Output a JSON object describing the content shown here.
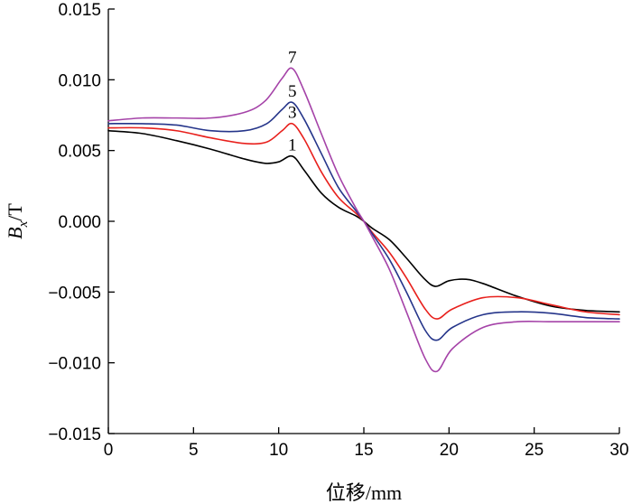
{
  "chart_data": {
    "type": "line",
    "xlabel": "位移/mm",
    "ylabel": "Bx/T",
    "ylabel_parts": {
      "main": "B",
      "sub": "x",
      "unit": "/T"
    },
    "xlim": [
      0,
      30
    ],
    "ylim": [
      -0.015,
      0.015
    ],
    "x_ticks": [
      0,
      5,
      10,
      15,
      20,
      25,
      30
    ],
    "x_tick_labels": [
      "0",
      "5",
      "10",
      "15",
      "20",
      "25",
      "30"
    ],
    "y_ticks": [
      0.015,
      0.01,
      0.005,
      0.0,
      -0.005,
      -0.01,
      -0.015
    ],
    "y_tick_labels": [
      "0.015",
      "0.010",
      "0.005",
      "0.000",
      "−0.005",
      "−0.010",
      "−0.015"
    ],
    "grid": false,
    "series": [
      {
        "name": "1",
        "color": "#000000",
        "label_at": [
          10.8,
          0.005
        ],
        "x": [
          0,
          2,
          4,
          6,
          8,
          9.2,
          10,
          10.8,
          11.5,
          12.5,
          13.5,
          14.5,
          15,
          15.5,
          16.5,
          17.5,
          18.5,
          19.2,
          20,
          21,
          22,
          24,
          26,
          28,
          30
        ],
        "y": [
          0.0064,
          0.0062,
          0.0057,
          0.0051,
          0.0044,
          0.0041,
          0.0042,
          0.0046,
          0.0036,
          0.002,
          0.001,
          0.0004,
          0.0,
          -0.0005,
          -0.0013,
          -0.0026,
          -0.004,
          -0.0046,
          -0.0042,
          -0.0041,
          -0.0044,
          -0.0053,
          -0.006,
          -0.0063,
          -0.0064
        ]
      },
      {
        "name": "3",
        "color": "#e8201c",
        "label_at": [
          10.8,
          0.0073
        ],
        "x": [
          0,
          2,
          4,
          6,
          8,
          9.3,
          10.2,
          10.8,
          11.5,
          12.5,
          13.5,
          14.5,
          15,
          15.5,
          16.5,
          17.5,
          18.6,
          19.3,
          20.2,
          22,
          24,
          26,
          28,
          30
        ],
        "y": [
          0.0066,
          0.0066,
          0.0064,
          0.0059,
          0.0055,
          0.0056,
          0.0064,
          0.0069,
          0.0058,
          0.0035,
          0.0017,
          0.0006,
          0.0,
          -0.0008,
          -0.0022,
          -0.004,
          -0.0062,
          -0.0069,
          -0.0062,
          -0.0054,
          -0.0054,
          -0.0059,
          -0.0064,
          -0.0066
        ]
      },
      {
        "name": "5",
        "color": "#25358a",
        "label_at": [
          10.8,
          0.0088
        ],
        "x": [
          0,
          2,
          4,
          6,
          8,
          9.3,
          10.2,
          10.8,
          11.5,
          12.5,
          13.5,
          14.5,
          15,
          15.5,
          16.5,
          17.5,
          18.6,
          19.3,
          20.2,
          22,
          24,
          26,
          28,
          30
        ],
        "y": [
          0.0069,
          0.0069,
          0.0068,
          0.0064,
          0.0064,
          0.0069,
          0.0079,
          0.0084,
          0.0072,
          0.0048,
          0.0024,
          0.0008,
          0.0,
          -0.0009,
          -0.0027,
          -0.005,
          -0.0077,
          -0.0084,
          -0.0075,
          -0.0066,
          -0.0064,
          -0.0065,
          -0.0068,
          -0.0069
        ]
      },
      {
        "name": "7",
        "color": "#a543a8",
        "label_at": [
          10.8,
          0.0112
        ],
        "x": [
          0,
          2,
          4,
          6,
          8,
          9.2,
          10.2,
          10.8,
          11.5,
          12.5,
          13.5,
          14.5,
          15,
          15.5,
          16.5,
          17.5,
          18.6,
          19.3,
          20.2,
          22,
          24,
          26,
          28,
          30
        ],
        "y": [
          0.0071,
          0.0073,
          0.0073,
          0.0073,
          0.0077,
          0.0085,
          0.0101,
          0.0108,
          0.0092,
          0.0062,
          0.0033,
          0.001,
          0.0,
          -0.0011,
          -0.0034,
          -0.0064,
          -0.0097,
          -0.0106,
          -0.009,
          -0.0075,
          -0.0071,
          -0.0071,
          -0.0071,
          -0.0071
        ]
      }
    ]
  }
}
